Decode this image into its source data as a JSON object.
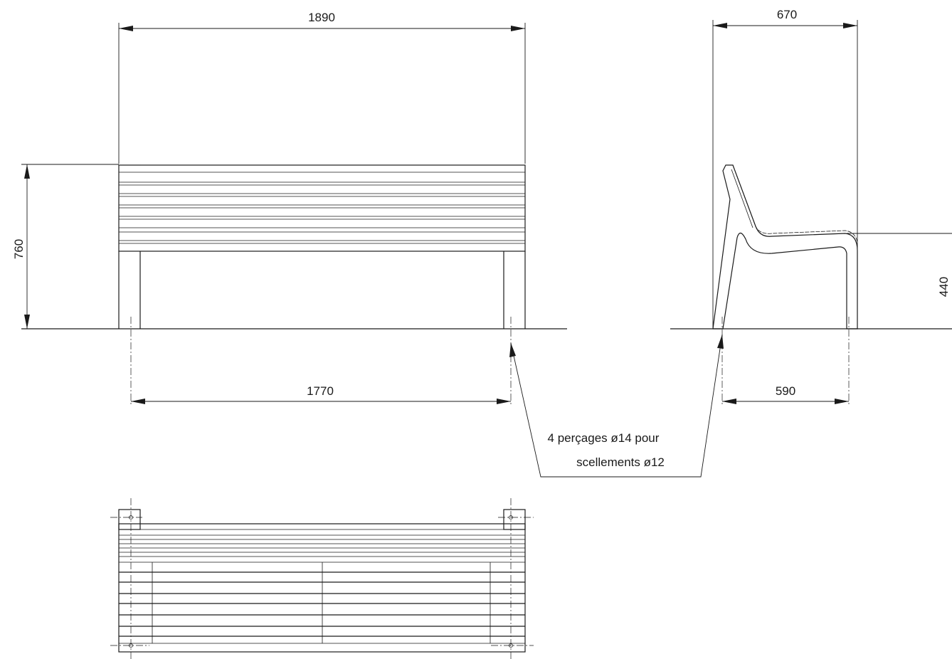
{
  "drawing": {
    "front_view": {
      "dim_overall_width": "1890",
      "dim_overall_height": "760",
      "dim_anchor_spacing": "1770"
    },
    "side_view": {
      "dim_overall_depth": "670",
      "dim_seat_height": "440",
      "dim_anchor_depth": "590"
    },
    "note": {
      "line1": "4 perçages ø14 pour",
      "line2": "scellements ø12"
    }
  }
}
